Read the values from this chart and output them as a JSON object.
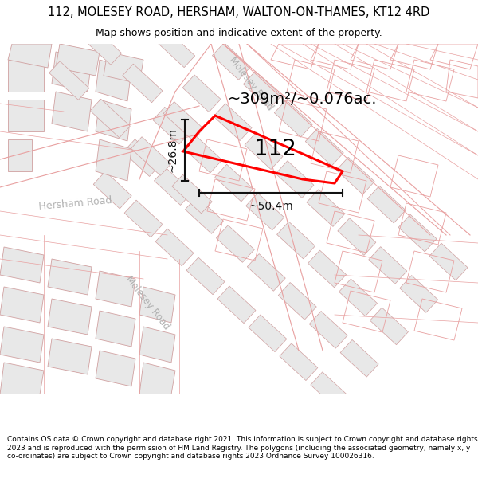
{
  "title_line1": "112, MOLESEY ROAD, HERSHAM, WALTON-ON-THAMES, KT12 4RD",
  "title_line2": "Map shows position and indicative extent of the property.",
  "area_label": "~309m²/~0.076ac.",
  "width_label": "~50.4m",
  "height_label": "~26.8m",
  "number_label": "112",
  "footer_text": "Contains OS data © Crown copyright and database right 2021. This information is subject to Crown copyright and database rights 2023 and is reproduced with the permission of HM Land Registry. The polygons (including the associated geometry, namely x, y co-ordinates) are subject to Crown copyright and database rights 2023 Ordnance Survey 100026316.",
  "map_bg": "#ffffff",
  "road_outline_color": "#e8a0a0",
  "building_fill": "#e8e8e8",
  "building_outline": "#d0a0a0",
  "property_color": "#ff0000",
  "dim_color": "#111111",
  "road_label_color": "#aaaaaa",
  "area_label_color": "#111111",
  "title_fontsize": 10.5,
  "subtitle_fontsize": 9,
  "footer_fontsize": 6.5
}
